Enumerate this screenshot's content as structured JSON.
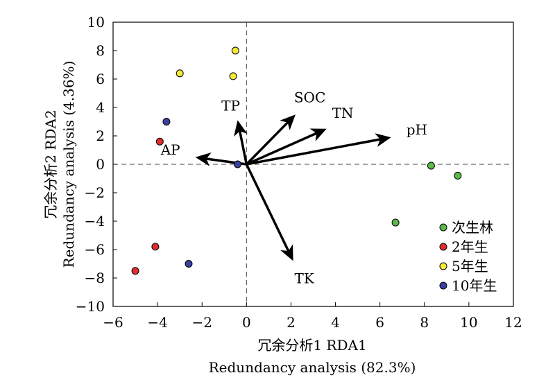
{
  "chart_data": {
    "type": "scatter",
    "xlim": [
      -6,
      12
    ],
    "ylim": [
      -10,
      10
    ],
    "x_ticks": [
      "−6",
      "−4",
      "−2",
      "0",
      "2",
      "4",
      "6",
      "8",
      "10",
      "12"
    ],
    "y_ticks": [
      "10",
      "8",
      "6",
      "4",
      "2",
      "0",
      "−2",
      "−4",
      "−6",
      "−8",
      "−10"
    ],
    "xlabel_cn": "冗余分析1 RDA1",
    "xlabel_en": "Redundancy analysis (82.3%)",
    "ylabel_cn": "冗余分析2 RDA2",
    "ylabel_en": "Redundancy analysis (4.36%)",
    "grid": false,
    "legend_position": "bottom-right",
    "reference_lines": {
      "x": 0,
      "y": 0,
      "style": "dashed"
    },
    "series": [
      {
        "name": "次生林",
        "color": "#5cb84a",
        "points": [
          [
            8.3,
            -0.1
          ],
          [
            9.5,
            -0.8
          ],
          [
            6.7,
            -4.1
          ]
        ]
      },
      {
        "name": "2年生",
        "color": "#e02e2e",
        "points": [
          [
            -3.9,
            1.6
          ],
          [
            -4.1,
            -5.8
          ],
          [
            -5.0,
            -7.5
          ]
        ]
      },
      {
        "name": "5年生",
        "color": "#f2ea3a",
        "points": [
          [
            -0.5,
            8.0
          ],
          [
            -3.0,
            6.4
          ],
          [
            -0.6,
            6.2
          ]
        ]
      },
      {
        "name": "10年生",
        "color": "#3a3fa0",
        "points": [
          [
            -3.6,
            3.0
          ],
          [
            -0.4,
            0.0
          ],
          [
            -2.6,
            -7.0
          ]
        ]
      }
    ],
    "vectors": [
      {
        "label": "pH",
        "x": 6.5,
        "y": 1.9
      },
      {
        "label": "TN",
        "x": 3.6,
        "y": 2.5
      },
      {
        "label": "SOC",
        "x": 2.2,
        "y": 3.5
      },
      {
        "label": "TP",
        "x": -0.4,
        "y": 3.1
      },
      {
        "label": "AP",
        "x": -2.3,
        "y": 0.5
      },
      {
        "label": "TK",
        "x": 2.1,
        "y": -6.8
      }
    ]
  }
}
